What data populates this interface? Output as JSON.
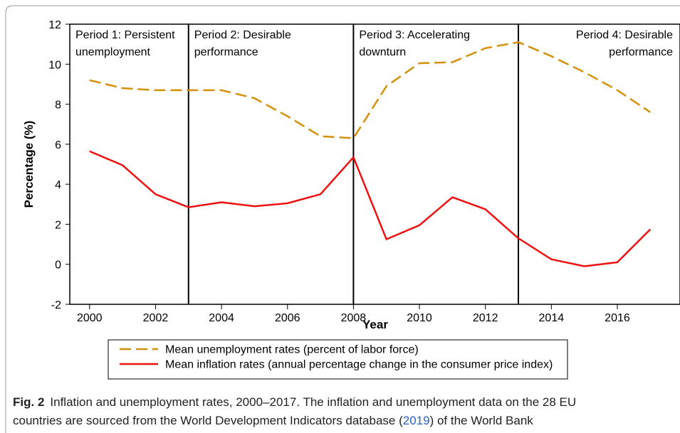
{
  "chart_data": {
    "type": "line",
    "ylabel": "Percentage (%)",
    "xlabel": "Year",
    "x": [
      2000,
      2001,
      2002,
      2003,
      2004,
      2005,
      2006,
      2007,
      2008,
      2009,
      2010,
      2011,
      2012,
      2013,
      2014,
      2015,
      2016,
      2017
    ],
    "series": [
      {
        "name": "Mean unemployment rates (percent of labor force)",
        "color": "#d4900a",
        "dash": true,
        "values": [
          9.2,
          8.8,
          8.7,
          8.7,
          8.7,
          8.3,
          7.4,
          6.4,
          6.3,
          8.9,
          10.05,
          10.1,
          10.8,
          11.1,
          10.4,
          9.6,
          8.7,
          7.6
        ]
      },
      {
        "name": "Mean inflation rates (annual percentage change in the consumer price index)",
        "color": "#ee1111",
        "dash": false,
        "values": [
          5.65,
          4.95,
          3.5,
          2.85,
          3.1,
          2.9,
          3.05,
          3.5,
          5.35,
          1.25,
          1.95,
          3.35,
          2.75,
          1.3,
          0.25,
          -0.1,
          0.1,
          1.75
        ]
      }
    ],
    "xlim": [
      1999.4,
      2017.9
    ],
    "xticks": [
      2000,
      2002,
      2004,
      2006,
      2008,
      2010,
      2012,
      2014,
      2016
    ],
    "ylim": [
      -2,
      12
    ],
    "yticks": [
      -2,
      0,
      2,
      4,
      6,
      8,
      10,
      12
    ],
    "period_boundaries": [
      2003,
      2008,
      2013
    ],
    "periods": [
      {
        "lines": [
          "Period 1: Persistent",
          "unemployment"
        ],
        "align": "left"
      },
      {
        "lines": [
          "Period 2: Desirable",
          "performance"
        ],
        "align": "left"
      },
      {
        "lines": [
          "Period 3: Accelerating",
          "downturn"
        ],
        "align": "left"
      },
      {
        "lines": [
          "Period 4: Desirable",
          "performance"
        ],
        "align": "right"
      }
    ]
  },
  "caption": {
    "label": "Fig. 2",
    "line1": "Inflation and unemployment rates, 2000–2017. The inflation and unemployment data on the 28 EU",
    "line2_before": "countries are sourced from the World Development Indicators database (",
    "link": "2019",
    "line2_after": ") of the World Bank"
  }
}
